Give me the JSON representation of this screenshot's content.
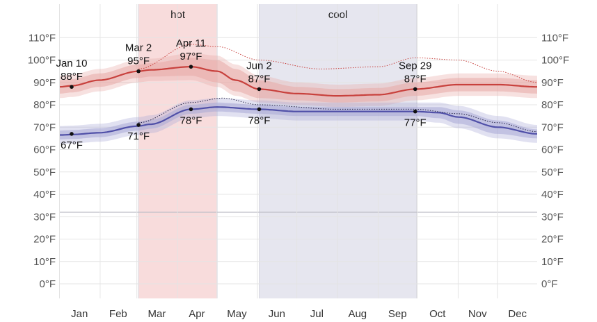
{
  "chart_data": {
    "type": "line",
    "x_unit": "day_of_year",
    "ylim": [
      -5,
      115
    ],
    "y_ticks": [
      {
        "value": 0,
        "label": "0°F"
      },
      {
        "value": 10,
        "label": "10°F"
      },
      {
        "value": 20,
        "label": "20°F"
      },
      {
        "value": 30,
        "label": "30°F"
      },
      {
        "value": 40,
        "label": "40°F"
      },
      {
        "value": 50,
        "label": "50°F"
      },
      {
        "value": 60,
        "label": "60°F"
      },
      {
        "value": 70,
        "label": "70°F"
      },
      {
        "value": 80,
        "label": "80°F"
      },
      {
        "value": 90,
        "label": "90°F"
      },
      {
        "value": 100,
        "label": "100°F"
      },
      {
        "value": 110,
        "label": "110°F"
      }
    ],
    "freezing_line": 32,
    "months": [
      {
        "label": "Jan",
        "start": 1,
        "end": 31
      },
      {
        "label": "Feb",
        "start": 32,
        "end": 59
      },
      {
        "label": "Mar",
        "start": 60,
        "end": 90
      },
      {
        "label": "Apr",
        "start": 91,
        "end": 120
      },
      {
        "label": "May",
        "start": 121,
        "end": 151
      },
      {
        "label": "Jun",
        "start": 152,
        "end": 181
      },
      {
        "label": "Jul",
        "start": 182,
        "end": 212
      },
      {
        "label": "Aug",
        "start": 213,
        "end": 243
      },
      {
        "label": "Sep",
        "start": 244,
        "end": 273
      },
      {
        "label": "Oct",
        "start": 274,
        "end": 304
      },
      {
        "label": "Nov",
        "start": 305,
        "end": 334
      },
      {
        "label": "Dec",
        "start": 335,
        "end": 365
      }
    ],
    "seasons": [
      {
        "label": "hot",
        "start": 61,
        "end": 121,
        "color": "#f8dcdc"
      },
      {
        "label": "cool",
        "start": 153,
        "end": 273,
        "color": "#e6e6ef"
      }
    ],
    "series": [
      {
        "role": "high",
        "color": "#c8413d",
        "band_color": "#e8a9a6",
        "x": [
          1,
          10,
          31,
          61,
          70,
          101,
          121,
          135,
          153,
          182,
          213,
          244,
          272,
          305,
          335,
          365
        ],
        "y": [
          88,
          88.5,
          91,
          95,
          95.6,
          97,
          95,
          91,
          87,
          85,
          84,
          84.5,
          87,
          89,
          89,
          88
        ],
        "band_inner": [
          3,
          3,
          3,
          3,
          3,
          4,
          5,
          5,
          4,
          3,
          3,
          3,
          3,
          3,
          3,
          3
        ],
        "band_outer": [
          5,
          5,
          5,
          5,
          5,
          6,
          7,
          7,
          6,
          5,
          5,
          5,
          5,
          5,
          5,
          5
        ]
      },
      {
        "role": "low",
        "color": "#5050a8",
        "band_color": "#a9a9d6",
        "x": [
          1,
          10,
          31,
          61,
          70,
          101,
          121,
          153,
          182,
          213,
          244,
          272,
          290,
          305,
          335,
          365
        ],
        "y": [
          66.5,
          66.7,
          67.5,
          70.5,
          71.3,
          78,
          79,
          78,
          77,
          77,
          77,
          77,
          76.5,
          74.5,
          70,
          67
        ],
        "band_inner": [
          2,
          2,
          2,
          2,
          2,
          2,
          2,
          2,
          2,
          2,
          2,
          2,
          2.5,
          3,
          3,
          2
        ],
        "band_outer": [
          4,
          4,
          4,
          4,
          4,
          4,
          4,
          4,
          4,
          4,
          4,
          4,
          4.5,
          5,
          5,
          4
        ]
      },
      {
        "role": "record-high-dotted",
        "color": "#c8413d",
        "x": [
          61,
          101,
          121,
          153,
          200,
          244,
          272,
          305,
          335,
          365
        ],
        "y": [
          96,
          107,
          106,
          100,
          96,
          97,
          101,
          100,
          95,
          90
        ]
      },
      {
        "role": "record-low-dotted",
        "color": "#222244",
        "x": [
          61,
          101,
          125,
          153,
          213,
          272,
          305,
          335,
          365
        ],
        "y": [
          72,
          81,
          83,
          80,
          78,
          78,
          76,
          72,
          68
        ]
      }
    ],
    "annotations": [
      {
        "x": 10,
        "y": 88,
        "label": "Jan 10",
        "value": "88°F",
        "pos": "above"
      },
      {
        "x": 10,
        "y": 67,
        "value": "67°F",
        "pos": "below"
      },
      {
        "x": 61,
        "y": 95,
        "label": "Mar 2",
        "value": "95°F",
        "pos": "above"
      },
      {
        "x": 61,
        "y": 71,
        "value": "71°F",
        "pos": "below"
      },
      {
        "x": 101,
        "y": 97,
        "label": "Apr 11",
        "value": "97°F",
        "pos": "above"
      },
      {
        "x": 101,
        "y": 78,
        "value": "78°F",
        "pos": "below"
      },
      {
        "x": 153,
        "y": 87,
        "label": "Jun 2",
        "value": "87°F",
        "pos": "above"
      },
      {
        "x": 153,
        "y": 78,
        "value": "78°F",
        "pos": "below"
      },
      {
        "x": 272,
        "y": 87,
        "label": "Sep 29",
        "value": "87°F",
        "pos": "above"
      },
      {
        "x": 272,
        "y": 77,
        "value": "77°F",
        "pos": "below"
      }
    ]
  }
}
